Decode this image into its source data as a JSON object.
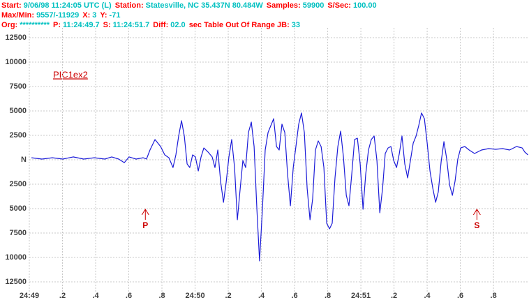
{
  "header": {
    "lines": [
      [
        {
          "label": "Start:",
          "value": "9/06/98 11:24:05 UTC (L)"
        },
        {
          "label": "Station:",
          "value": "Statesville, NC 35.437N 80.484W"
        },
        {
          "label": "Samples:",
          "value": "59900"
        },
        {
          "label": "S/Sec:",
          "value": "100.00"
        }
      ],
      [
        {
          "label": "Max/Min:",
          "value": "9557/-11929"
        },
        {
          "label": "X:",
          "value": "3"
        },
        {
          "label": "Y:",
          "value": "-71"
        }
      ],
      [
        {
          "label": "Org:",
          "value": "**********"
        },
        {
          "label": "P:",
          "value": "11:24:49.7"
        },
        {
          "label": "S:",
          "value": "11:24:51.7"
        },
        {
          "label": "Diff:",
          "value": "02.0"
        },
        {
          "label": "sec  Table Out Of Range  JB:",
          "value": "33"
        }
      ]
    ]
  },
  "chart_data": {
    "type": "line",
    "label": "PIC1ex2",
    "markers": [
      {
        "text": "P",
        "x": 49.7
      },
      {
        "text": "S",
        "x": 51.7
      }
    ],
    "xlim": [
      49,
      52.01
    ],
    "ylim": [
      -13500,
      13500
    ],
    "xticks": [
      {
        "value": 49,
        "label": "24:49"
      },
      {
        "value": 49.2,
        "label": ".2"
      },
      {
        "value": 49.4,
        "label": ".4"
      },
      {
        "value": 49.6,
        "label": ".6"
      },
      {
        "value": 49.8,
        "label": ".8"
      },
      {
        "value": 50,
        "label": "24:50"
      },
      {
        "value": 50.2,
        "label": ".2"
      },
      {
        "value": 50.4,
        "label": ".4"
      },
      {
        "value": 50.6,
        "label": ".6"
      },
      {
        "value": 50.8,
        "label": ".8"
      },
      {
        "value": 51,
        "label": "24:51"
      },
      {
        "value": 51.2,
        "label": ".2"
      },
      {
        "value": 51.4,
        "label": ".4"
      },
      {
        "value": 51.6,
        "label": ".6"
      },
      {
        "value": 51.8,
        "label": ".8"
      }
    ],
    "yticks": [
      12500,
      10000,
      7500,
      5000,
      2500,
      {
        "value": 0,
        "label": "N",
        "color": "#0000ff"
      },
      {
        "value": -2500,
        "label": "2500"
      },
      {
        "value": -5000,
        "label": "5000"
      },
      {
        "value": -7500,
        "label": "7500"
      },
      {
        "value": -10000,
        "label": "10000"
      },
      {
        "value": -12500,
        "label": "12500"
      }
    ],
    "grid": true,
    "series": [
      {
        "color": "#1c1cd8",
        "x": [
          49.013,
          49.076,
          49.139,
          49.202,
          49.265,
          49.328,
          49.392,
          49.455,
          49.497,
          49.539,
          49.573,
          49.602,
          49.644,
          49.686,
          49.707,
          49.728,
          49.758,
          49.792,
          49.817,
          49.842,
          49.867,
          49.884,
          49.901,
          49.918,
          49.935,
          49.952,
          49.968,
          49.985,
          50.002,
          50.019,
          50.036,
          50.053,
          50.078,
          50.103,
          50.12,
          50.137,
          50.154,
          50.171,
          50.187,
          50.204,
          50.221,
          50.238,
          50.255,
          50.272,
          50.288,
          50.305,
          50.322,
          50.339,
          50.356,
          50.373,
          50.389,
          50.406,
          50.423,
          50.44,
          50.457,
          50.474,
          50.491,
          50.507,
          50.524,
          50.541,
          50.558,
          50.575,
          50.592,
          50.608,
          50.625,
          50.642,
          50.659,
          50.676,
          50.693,
          50.709,
          50.726,
          50.743,
          50.76,
          50.777,
          50.794,
          50.811,
          50.827,
          50.844,
          50.861,
          50.878,
          50.895,
          50.912,
          50.928,
          50.945,
          50.962,
          50.979,
          50.996,
          51.013,
          51.029,
          51.046,
          51.063,
          51.08,
          51.097,
          51.114,
          51.131,
          51.147,
          51.164,
          51.181,
          51.198,
          51.215,
          51.232,
          51.248,
          51.265,
          51.282,
          51.299,
          51.316,
          51.333,
          51.349,
          51.366,
          51.383,
          51.4,
          51.417,
          51.434,
          51.451,
          51.467,
          51.484,
          51.501,
          51.518,
          51.535,
          51.552,
          51.568,
          51.585,
          51.602,
          51.627,
          51.653,
          51.686,
          51.728,
          51.771,
          51.813,
          51.855,
          51.897,
          51.939,
          51.973,
          51.989,
          52.008
        ],
        "values": [
          210,
          70,
          210,
          70,
          290,
          70,
          210,
          70,
          290,
          70,
          -290,
          290,
          70,
          210,
          70,
          1000,
          2070,
          1360,
          500,
          210,
          -790,
          500,
          2430,
          4000,
          2430,
          -430,
          -790,
          500,
          290,
          -1140,
          290,
          1210,
          790,
          290,
          -790,
          1000,
          -2210,
          -4360,
          -2360,
          290,
          2070,
          -790,
          -6140,
          -2930,
          -70,
          -790,
          2790,
          3860,
          1360,
          -5070,
          -10360,
          -5070,
          1000,
          2790,
          3500,
          4210,
          1360,
          1000,
          3640,
          2790,
          -1500,
          -4710,
          -790,
          1360,
          3640,
          4790,
          2790,
          -2930,
          -6140,
          -4000,
          1000,
          1930,
          1360,
          -790,
          -6500,
          -7070,
          -6500,
          -1860,
          1360,
          2930,
          290,
          -3640,
          -4710,
          -1500,
          2070,
          2210,
          -430,
          -5070,
          -1500,
          1000,
          2070,
          2430,
          -70,
          -5430,
          -2930,
          640,
          1210,
          1360,
          -70,
          -790,
          640,
          2430,
          -430,
          -1860,
          -70,
          1710,
          2430,
          3500,
          4790,
          4210,
          1710,
          -1140,
          -2930,
          -4360,
          -3290,
          -210,
          1860,
          70,
          -2570,
          -3640,
          -2210,
          70,
          1210,
          1360,
          1000,
          640,
          1000,
          1140,
          1070,
          1140,
          1000,
          1360,
          1210,
          790,
          500
        ]
      }
    ]
  }
}
